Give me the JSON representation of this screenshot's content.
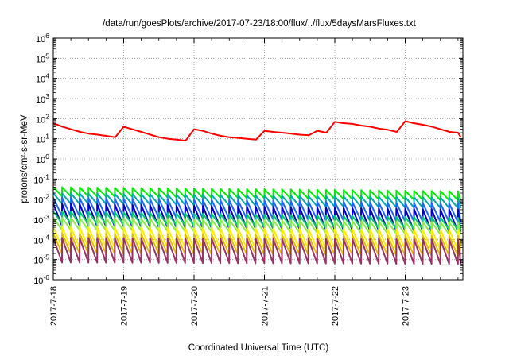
{
  "chart_data": {
    "type": "line",
    "title": "/data/run/goesPlots/archive/2017-07-23/18:00/flux/../flux/5daysMarsFluxes.txt",
    "xlabel": "Coordinated Universal Time (UTC)",
    "ylabel": "protons/cm²-s-sr-MeV",
    "y_scale": "log",
    "ylim": [
      1e-06,
      1000000.0
    ],
    "y_ticks": [
      {
        "base": "10",
        "exp": "-6"
      },
      {
        "base": "10",
        "exp": "-5"
      },
      {
        "base": "10",
        "exp": "-4"
      },
      {
        "base": "10",
        "exp": "-3"
      },
      {
        "base": "10",
        "exp": "-2"
      },
      {
        "base": "10",
        "exp": "-1"
      },
      {
        "base": "10",
        "exp": "0"
      },
      {
        "base": "10",
        "exp": "1"
      },
      {
        "base": "10",
        "exp": "2"
      },
      {
        "base": "10",
        "exp": "3"
      },
      {
        "base": "10",
        "exp": "4"
      },
      {
        "base": "10",
        "exp": "5"
      },
      {
        "base": "10",
        "exp": "6"
      }
    ],
    "x_unit": "days",
    "xlim": [
      "2017-07-18 00:00",
      "2017-07-23 19:00"
    ],
    "x_ticks": [
      "2017-7-18",
      "2017-7-19",
      "2017-7-20",
      "2017-7-21",
      "2017-7-22",
      "2017-7-23"
    ],
    "grid": true,
    "legend": "none",
    "series": [
      {
        "color": "#ff0000",
        "x_days": [
          0.0,
          0.13,
          0.25,
          0.38,
          0.5,
          0.63,
          0.75,
          0.88,
          1.0,
          1.12,
          1.25,
          1.38,
          1.5,
          1.63,
          1.75,
          1.88,
          2.0,
          2.12,
          2.25,
          2.38,
          2.5,
          2.63,
          2.75,
          2.88,
          3.0,
          3.12,
          3.25,
          3.38,
          3.5,
          3.63,
          3.75,
          3.88,
          4.0,
          4.12,
          4.25,
          4.38,
          4.5,
          4.63,
          4.75,
          4.88,
          5.0,
          5.12,
          5.25,
          5.38,
          5.5,
          5.63,
          5.75,
          5.79
        ],
        "y": [
          60,
          40,
          30,
          22,
          18,
          16,
          14,
          12,
          40,
          30,
          22,
          16,
          12,
          10,
          9,
          8,
          30,
          25,
          18,
          14,
          12,
          11,
          10,
          9,
          25,
          22,
          20,
          18,
          16,
          15,
          25,
          20,
          70,
          60,
          55,
          45,
          40,
          32,
          28,
          22,
          75,
          60,
          50,
          40,
          30,
          22,
          20,
          12
        ]
      },
      {
        "color": "#00ee00",
        "x_days": [
          0,
          5.79
        ],
        "y": [
          0.04,
          0.025
        ],
        "sawtooth": {
          "period_days": 0.125,
          "drop_factor": 0.35
        }
      },
      {
        "color": "#00aaaa",
        "x_days": [
          0,
          5.79
        ],
        "y": [
          0.02,
          0.012
        ],
        "sawtooth": {
          "period_days": 0.125,
          "drop_factor": 0.3
        }
      },
      {
        "color": "#1e66ff",
        "x_days": [
          0,
          5.79
        ],
        "y": [
          0.012,
          0.006
        ],
        "sawtooth": {
          "period_days": 0.125,
          "drop_factor": 0.12
        }
      },
      {
        "color": "#0000cc",
        "x_days": [
          0,
          5.79
        ],
        "y": [
          0.006,
          0.003
        ],
        "sawtooth": {
          "period_days": 0.125,
          "drop_factor": 0.08
        }
      },
      {
        "color": "#00cc66",
        "x_days": [
          0,
          5.79
        ],
        "y": [
          0.0025,
          0.0012
        ],
        "sawtooth": {
          "period_days": 0.125,
          "drop_factor": 0.25
        }
      },
      {
        "color": "#88ee44",
        "x_days": [
          0,
          5.79
        ],
        "y": [
          0.0012,
          0.0007
        ],
        "sawtooth": {
          "period_days": 0.125,
          "drop_factor": 0.25
        }
      },
      {
        "color": "#ffee00",
        "x_days": [
          0,
          5.79
        ],
        "y": [
          0.0004,
          0.0003
        ],
        "sawtooth": {
          "period_days": 0.125,
          "drop_factor": 0.1
        }
      },
      {
        "color": "#e0c000",
        "x_days": [
          0,
          5.79
        ],
        "y": [
          0.0002,
          0.00015
        ],
        "sawtooth": {
          "period_days": 0.125,
          "drop_factor": 0.1
        }
      },
      {
        "color": "#993366",
        "x_days": [
          0,
          5.79
        ],
        "y": [
          0.00012,
          0.0001
        ],
        "sawtooth": {
          "period_days": 0.125,
          "drop_factor": 0.06
        }
      }
    ]
  }
}
